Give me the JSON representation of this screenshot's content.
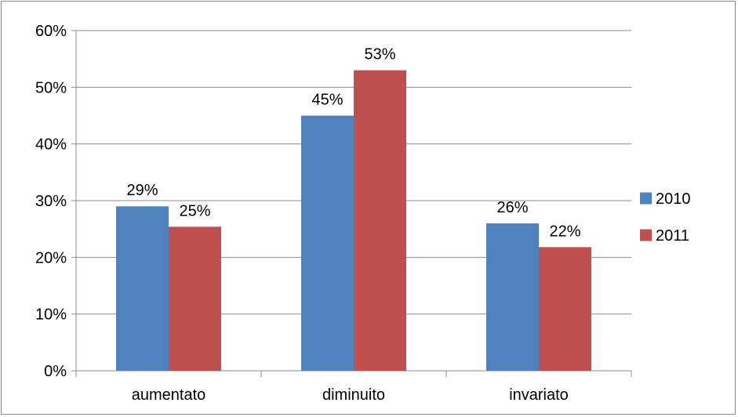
{
  "chart_data": {
    "type": "bar",
    "categories": [
      "aumentato",
      "diminuito",
      "invariato"
    ],
    "series": [
      {
        "name": "2010",
        "values": [
          29,
          45,
          26
        ],
        "labels": [
          "29%",
          "45%",
          "26%"
        ],
        "color": "#4F81BD"
      },
      {
        "name": "2011",
        "values": [
          25.4,
          53,
          21.8
        ],
        "labels": [
          "25%",
          "53%",
          "22%"
        ],
        "color": "#C0504D"
      }
    ],
    "yticks": [
      "0%",
      "10%",
      "20%",
      "30%",
      "40%",
      "50%",
      "60%"
    ],
    "ylim": [
      0,
      60
    ],
    "grid": true,
    "legend_position": "right"
  }
}
